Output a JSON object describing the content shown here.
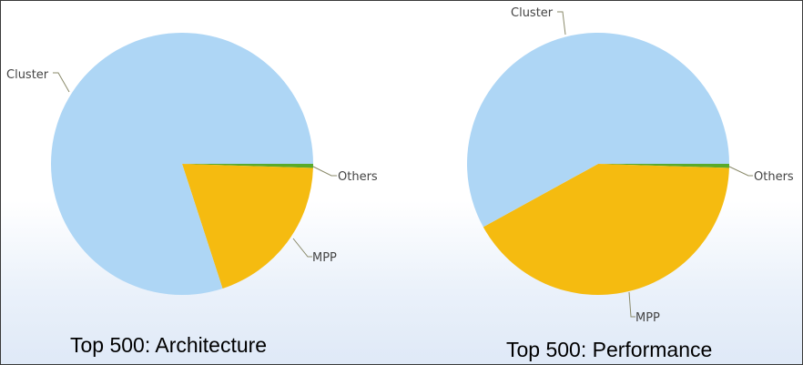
{
  "colors": {
    "Cluster": "#aed6f5",
    "MPP": "#f5bb10",
    "Others": "#5aaa2a",
    "leader": "#8a8a6a"
  },
  "chart_data": [
    {
      "type": "pie",
      "title": "Top 500: Architecture",
      "slices": [
        {
          "label": "Others",
          "value": 0.5
        },
        {
          "label": "MPP",
          "value": 19.5
        },
        {
          "label": "Cluster",
          "value": 80.0
        }
      ]
    },
    {
      "type": "pie",
      "title": "Top 500: Performance",
      "slices": [
        {
          "label": "Others",
          "value": 0.5
        },
        {
          "label": "MPP",
          "value": 41.5
        },
        {
          "label": "Cluster",
          "value": 58.0
        }
      ]
    }
  ]
}
